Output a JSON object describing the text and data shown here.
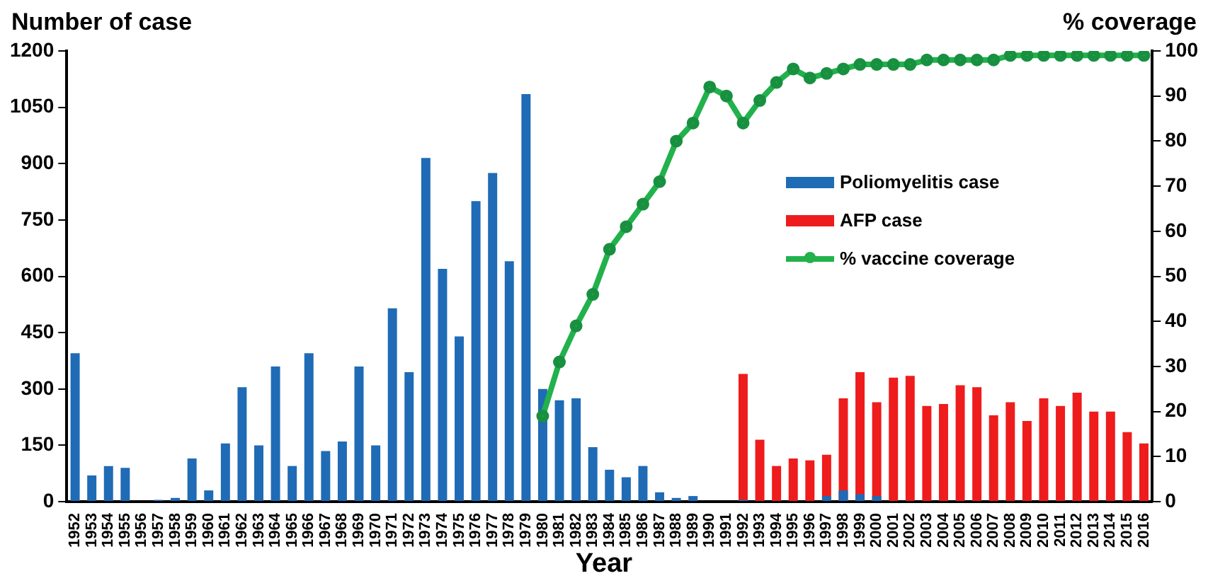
{
  "chart_data": {
    "type": "bar",
    "xlabel": "Year",
    "ylabel": "Number of case",
    "y2label": "% coverage",
    "categories": [
      "1952",
      "1953",
      "1954",
      "1955",
      "1956",
      "1957",
      "1958",
      "1959",
      "1960",
      "1961",
      "1962",
      "1963",
      "1964",
      "1965",
      "1966",
      "1967",
      "1968",
      "1969",
      "1970",
      "1971",
      "1972",
      "1973",
      "1974",
      "1975",
      "1976",
      "1977",
      "1978",
      "1979",
      "1980",
      "1981",
      "1982",
      "1983",
      "1984",
      "1985",
      "1986",
      "1987",
      "1988",
      "1989",
      "1990",
      "1991",
      "1992",
      "1993",
      "1994",
      "1995",
      "1996",
      "1997",
      "1998",
      "1999",
      "2000",
      "2001",
      "2002",
      "2003",
      "2004",
      "2005",
      "2006",
      "2007",
      "2008",
      "2009",
      "2010",
      "2011",
      "2012",
      "2013",
      "2014",
      "2015",
      "2016"
    ],
    "series": [
      {
        "name": "Poliomyelitis case",
        "color": "#1f6bb5",
        "values": [
          395,
          70,
          95,
          90,
          0,
          5,
          10,
          115,
          30,
          155,
          305,
          150,
          360,
          95,
          395,
          135,
          160,
          360,
          150,
          515,
          345,
          915,
          620,
          440,
          800,
          875,
          640,
          1085,
          300,
          270,
          275,
          145,
          85,
          65,
          95,
          25,
          10,
          15,
          null,
          null,
          5,
          0,
          0,
          0,
          0,
          15,
          30,
          20,
          15,
          0,
          0,
          0,
          0,
          0,
          0,
          0,
          0,
          0,
          0,
          0,
          0,
          0,
          0,
          0,
          0
        ]
      },
      {
        "name": "AFP case",
        "color": "#ee1c1c",
        "values": [
          null,
          null,
          null,
          null,
          null,
          null,
          null,
          null,
          null,
          null,
          null,
          null,
          null,
          null,
          null,
          null,
          null,
          null,
          null,
          null,
          null,
          null,
          null,
          null,
          null,
          null,
          null,
          null,
          null,
          null,
          null,
          null,
          null,
          null,
          null,
          null,
          null,
          null,
          null,
          null,
          340,
          165,
          95,
          115,
          110,
          125,
          275,
          345,
          265,
          330,
          335,
          255,
          260,
          310,
          305,
          230,
          265,
          215,
          275,
          255,
          290,
          240,
          240,
          185,
          155
        ]
      },
      {
        "name": "% vaccine coverage",
        "type": "line",
        "axis": "y2",
        "color": "#22b14c",
        "values": [
          null,
          null,
          null,
          null,
          null,
          null,
          null,
          null,
          null,
          null,
          null,
          null,
          null,
          null,
          null,
          null,
          null,
          null,
          null,
          null,
          null,
          null,
          null,
          null,
          null,
          null,
          null,
          null,
          19,
          31,
          39,
          46,
          56,
          61,
          66,
          71,
          80,
          84,
          92,
          90,
          84,
          89,
          93,
          96,
          94,
          95,
          96,
          97,
          97,
          97,
          97,
          98,
          98,
          98,
          98,
          98,
          99,
          99,
          99,
          99,
          99,
          99,
          99,
          99,
          99
        ]
      }
    ],
    "ylim": [
      0,
      1200
    ],
    "yticks": [
      0,
      150,
      300,
      450,
      600,
      750,
      900,
      1050,
      1200
    ],
    "y2lim": [
      0,
      100
    ],
    "y2ticks": [
      0,
      10,
      20,
      30,
      40,
      50,
      60,
      70,
      80,
      90,
      100
    ],
    "grid": false,
    "legend": "right",
    "marker": "circle"
  }
}
